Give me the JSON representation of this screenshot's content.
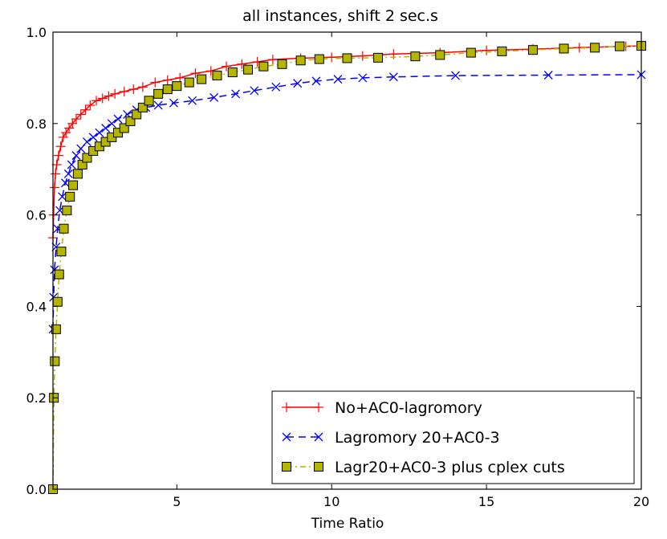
{
  "chart_data": {
    "type": "line",
    "title": "all instances, shift 2 sec.s",
    "xlabel": "Time Ratio",
    "ylabel": "",
    "xlim": [
      1,
      20
    ],
    "ylim": [
      0.0,
      1.0
    ],
    "xticks": [
      5,
      10,
      15,
      20
    ],
    "xtick_labels": [
      "5",
      "10",
      "15",
      "20"
    ],
    "yticks": [
      0.0,
      0.2,
      0.4,
      0.6,
      0.8,
      1.0
    ],
    "ytick_labels": [
      "0.0",
      "0.2",
      "0.4",
      "0.6",
      "0.8",
      "1.0"
    ],
    "grid": false,
    "legend_position": "bottom-right",
    "series": [
      {
        "name": "No+AC0-lagromory",
        "color": "#ff0000",
        "line_style": "solid",
        "marker": "plus",
        "points": [
          [
            1.0,
            0.55
          ],
          [
            1.02,
            0.6
          ],
          [
            1.05,
            0.66
          ],
          [
            1.08,
            0.69
          ],
          [
            1.12,
            0.71
          ],
          [
            1.18,
            0.73
          ],
          [
            1.25,
            0.75
          ],
          [
            1.33,
            0.77
          ],
          [
            1.42,
            0.78
          ],
          [
            1.52,
            0.79
          ],
          [
            1.63,
            0.8
          ],
          [
            1.75,
            0.81
          ],
          [
            1.9,
            0.82
          ],
          [
            2.05,
            0.83
          ],
          [
            2.2,
            0.84
          ],
          [
            2.4,
            0.85
          ],
          [
            2.6,
            0.855
          ],
          [
            2.8,
            0.86
          ],
          [
            3.0,
            0.865
          ],
          [
            3.3,
            0.87
          ],
          [
            3.6,
            0.875
          ],
          [
            3.9,
            0.88
          ],
          [
            4.3,
            0.89
          ],
          [
            4.7,
            0.895
          ],
          [
            5.1,
            0.9
          ],
          [
            5.6,
            0.91
          ],
          [
            6.1,
            0.915
          ],
          [
            6.6,
            0.925
          ],
          [
            7.1,
            0.93
          ],
          [
            7.6,
            0.935
          ],
          [
            8.1,
            0.94
          ],
          [
            9.0,
            0.943
          ],
          [
            10.0,
            0.945
          ],
          [
            11.0,
            0.948
          ],
          [
            12.0,
            0.952
          ],
          [
            13.5,
            0.955
          ],
          [
            15.0,
            0.96
          ],
          [
            16.5,
            0.963
          ],
          [
            18.0,
            0.966
          ],
          [
            19.5,
            0.969
          ],
          [
            20.0,
            0.97
          ]
        ]
      },
      {
        "name": "Lagromory 20+AC0-3",
        "color": "#0000ff",
        "line_style": "dashed",
        "marker": "x",
        "points": [
          [
            1.0,
            0.35
          ],
          [
            1.02,
            0.42
          ],
          [
            1.05,
            0.48
          ],
          [
            1.1,
            0.53
          ],
          [
            1.15,
            0.57
          ],
          [
            1.22,
            0.61
          ],
          [
            1.3,
            0.64
          ],
          [
            1.4,
            0.67
          ],
          [
            1.5,
            0.69
          ],
          [
            1.6,
            0.71
          ],
          [
            1.75,
            0.73
          ],
          [
            1.9,
            0.745
          ],
          [
            2.1,
            0.76
          ],
          [
            2.3,
            0.77
          ],
          [
            2.5,
            0.78
          ],
          [
            2.7,
            0.79
          ],
          [
            2.9,
            0.8
          ],
          [
            3.1,
            0.81
          ],
          [
            3.4,
            0.82
          ],
          [
            3.7,
            0.83
          ],
          [
            4.0,
            0.835
          ],
          [
            4.4,
            0.84
          ],
          [
            4.9,
            0.845
          ],
          [
            5.5,
            0.85
          ],
          [
            6.2,
            0.857
          ],
          [
            6.9,
            0.865
          ],
          [
            7.5,
            0.872
          ],
          [
            8.2,
            0.88
          ],
          [
            8.9,
            0.888
          ],
          [
            9.5,
            0.893
          ],
          [
            10.2,
            0.897
          ],
          [
            11.0,
            0.9
          ],
          [
            12.0,
            0.902
          ],
          [
            14.0,
            0.905
          ],
          [
            17.0,
            0.906
          ],
          [
            20.0,
            0.907
          ]
        ]
      },
      {
        "name": "Lagr20+AC0-3 plus cplex cuts",
        "color": "#b5b500",
        "line_style": "dashdot",
        "marker": "square",
        "points": [
          [
            1.0,
            0.0
          ],
          [
            1.03,
            0.2
          ],
          [
            1.06,
            0.28
          ],
          [
            1.1,
            0.35
          ],
          [
            1.15,
            0.41
          ],
          [
            1.2,
            0.47
          ],
          [
            1.27,
            0.52
          ],
          [
            1.35,
            0.57
          ],
          [
            1.45,
            0.61
          ],
          [
            1.55,
            0.64
          ],
          [
            1.65,
            0.665
          ],
          [
            1.8,
            0.69
          ],
          [
            1.95,
            0.71
          ],
          [
            2.1,
            0.725
          ],
          [
            2.3,
            0.74
          ],
          [
            2.5,
            0.75
          ],
          [
            2.7,
            0.76
          ],
          [
            2.9,
            0.77
          ],
          [
            3.1,
            0.78
          ],
          [
            3.3,
            0.79
          ],
          [
            3.5,
            0.805
          ],
          [
            3.7,
            0.82
          ],
          [
            3.9,
            0.835
          ],
          [
            4.1,
            0.85
          ],
          [
            4.4,
            0.865
          ],
          [
            4.7,
            0.875
          ],
          [
            5.0,
            0.882
          ],
          [
            5.4,
            0.89
          ],
          [
            5.8,
            0.897
          ],
          [
            6.3,
            0.905
          ],
          [
            6.8,
            0.912
          ],
          [
            7.3,
            0.918
          ],
          [
            7.8,
            0.925
          ],
          [
            8.4,
            0.93
          ],
          [
            9.0,
            0.938
          ],
          [
            9.6,
            0.941
          ],
          [
            10.5,
            0.943
          ],
          [
            11.5,
            0.944
          ],
          [
            12.7,
            0.947
          ],
          [
            13.5,
            0.95
          ],
          [
            14.5,
            0.955
          ],
          [
            15.5,
            0.958
          ],
          [
            16.5,
            0.961
          ],
          [
            17.5,
            0.964
          ],
          [
            18.5,
            0.966
          ],
          [
            19.3,
            0.969
          ],
          [
            20.0,
            0.97
          ]
        ]
      }
    ]
  }
}
